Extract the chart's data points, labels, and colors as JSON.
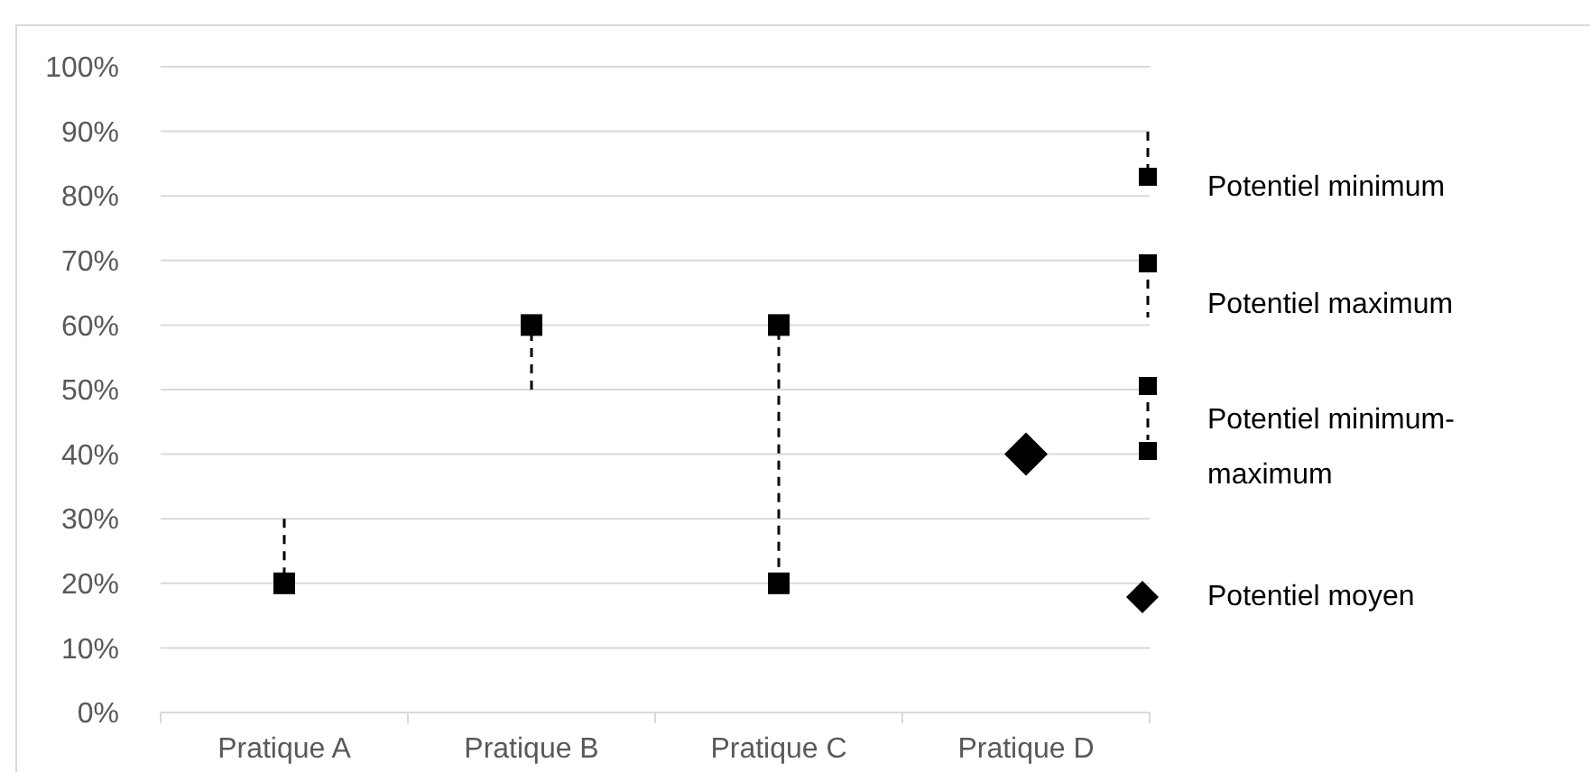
{
  "chart_data": {
    "type": "scatter",
    "categories": [
      "Pratique A",
      "Pratique B",
      "Pratique C",
      "Pratique D"
    ],
    "ylim": [
      0,
      100
    ],
    "yticks": [
      {
        "value": 0,
        "label": "0%"
      },
      {
        "value": 10,
        "label": "10%"
      },
      {
        "value": 20,
        "label": "20%"
      },
      {
        "value": 30,
        "label": "30%"
      },
      {
        "value": 40,
        "label": "40%"
      },
      {
        "value": 50,
        "label": "50%"
      },
      {
        "value": 60,
        "label": "60%"
      },
      {
        "value": 70,
        "label": "70%"
      },
      {
        "value": 80,
        "label": "80%"
      },
      {
        "value": 90,
        "label": "90%"
      },
      {
        "value": 100,
        "label": "100%"
      }
    ],
    "grid": "y",
    "legend": "right",
    "line_style": "dashed",
    "series": [
      {
        "name": "Potentiel minimum",
        "color": "#000000",
        "marker": "square",
        "values": [
          20,
          null,
          null,
          null
        ],
        "errors": [
          [
            20,
            30
          ],
          null,
          null,
          null
        ]
      },
      {
        "name": "Potentiel maximum",
        "color": "#000000",
        "marker": "square",
        "values": [
          null,
          60,
          null,
          null
        ],
        "errors": [
          null,
          [
            50,
            60
          ],
          null,
          null
        ]
      },
      {
        "name": "Potentiel minimum-maximum",
        "type": "line",
        "color": "#000000",
        "marker": "square",
        "x": [
          "Pratique C",
          "Pratique C"
        ],
        "values": [
          20,
          60
        ]
      },
      {
        "name": "Potentiel moyen",
        "color": "#000000",
        "marker": "diamond",
        "values": [
          null,
          null,
          null,
          40
        ]
      }
    ]
  }
}
